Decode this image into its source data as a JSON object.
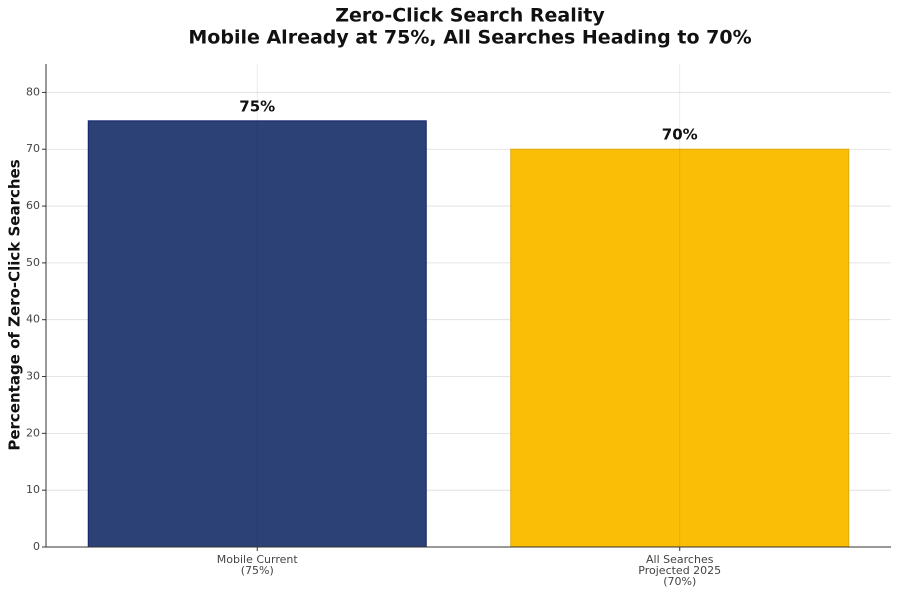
{
  "chart_data": {
    "type": "bar",
    "title": [
      "Zero-Click Search Reality",
      "Mobile Already at 75%, All Searches Heading to 70%"
    ],
    "ylabel": "Percentage of Zero-Click Searches",
    "categories": [
      [
        "Mobile Current",
        "(75%)"
      ],
      [
        "All Searches",
        "Projected 2025",
        "(70%)"
      ]
    ],
    "values": [
      75,
      70
    ],
    "value_labels": [
      "75%",
      "70%"
    ],
    "colors": [
      "#2c4175",
      "#fbbe07"
    ],
    "edge_colors": [
      "#13246a",
      "#e0aa10"
    ],
    "ylim": [
      0,
      85
    ],
    "yticks": [
      0,
      10,
      20,
      30,
      40,
      50,
      60,
      70,
      80
    ],
    "grid": true
  }
}
